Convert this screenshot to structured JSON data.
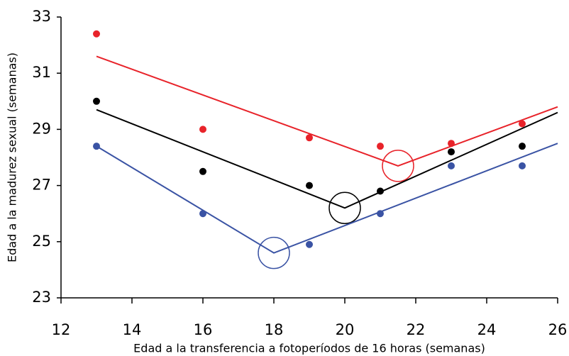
{
  "chart_data": {
    "type": "scatter",
    "xlabel": "Edad a la transferencia a fotoperíodos de 16 horas (semanas)",
    "ylabel": "Edad a la madurez sexual (semanas)",
    "xlim": [
      12,
      26
    ],
    "ylim": [
      23,
      33
    ],
    "xticks": [
      12,
      14,
      16,
      18,
      20,
      22,
      24,
      26
    ],
    "yticks": [
      23,
      25,
      27,
      29,
      31,
      33
    ],
    "series": [
      {
        "color": "#e8232a",
        "x": [
          13,
          16,
          19,
          21,
          23,
          25
        ],
        "values": [
          32.4,
          29.0,
          28.7,
          28.4,
          28.5,
          29.2
        ],
        "fit_x": [
          13,
          21.5,
          26
        ],
        "fit_values": [
          31.6,
          27.7,
          29.8
        ]
      },
      {
        "color": "#000000",
        "x": [
          13,
          16,
          19,
          21,
          23,
          25
        ],
        "values": [
          30.0,
          27.5,
          27.0,
          26.8,
          28.2,
          28.4
        ],
        "fit_x": [
          13,
          20,
          26
        ],
        "fit_values": [
          29.7,
          26.2,
          29.6
        ]
      },
      {
        "color": "#3a53a4",
        "x": [
          13,
          16,
          19,
          21,
          23,
          25
        ],
        "values": [
          28.4,
          26.0,
          24.9,
          26.0,
          27.7,
          27.7
        ],
        "fit_x": [
          13,
          18,
          26
        ],
        "fit_values": [
          28.4,
          24.6,
          28.5
        ]
      }
    ]
  }
}
